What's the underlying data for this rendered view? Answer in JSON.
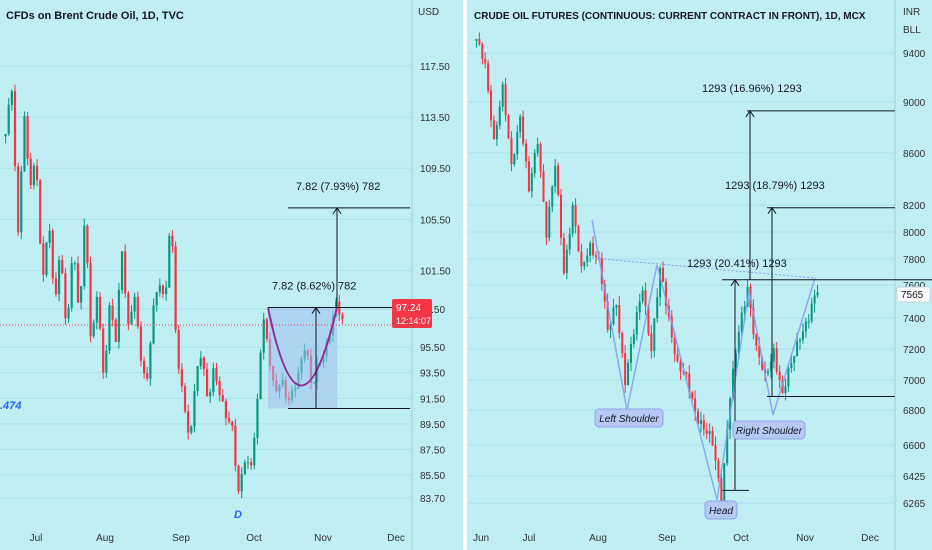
{
  "chart_data": [
    {
      "type": "candlestick",
      "title": "CFDs on Brent Crude Oil, 1D, TVC",
      "currency": "USD",
      "y_ticks": [
        117.5,
        113.5,
        109.5,
        105.5,
        101.5,
        98.5,
        95.5,
        93.5,
        91.5,
        89.5,
        87.5,
        85.5,
        83.7
      ],
      "y_tick_labels": [
        "117.50",
        "113.50",
        "109.50",
        "105.50",
        "101.50",
        "98.50",
        "95.50",
        "93.50",
        "91.50",
        "89.50",
        "87.50",
        "85.50",
        "83.70"
      ],
      "x_ticks": [
        "Jul",
        "Aug",
        "Sep",
        "Oct",
        "Nov",
        "Dec"
      ],
      "last_price": "97.24",
      "countdown": "12:14:07",
      "edge_label": ".474",
      "pattern_label": "D",
      "annotations": [
        "7.82 (7.93%) 782",
        "7.82 (8.62%) 782"
      ],
      "levels": {
        "neckline": 98.6,
        "target": 106.4,
        "cup_bottom": 90.7
      },
      "path": [
        112,
        116,
        104,
        114,
        108,
        110,
        100,
        106,
        99,
        103,
        96,
        104,
        98,
        106,
        95,
        100,
        93,
        99,
        96,
        103,
        97,
        100,
        95,
        92,
        98,
        101,
        99,
        106,
        94,
        92,
        88,
        93,
        95,
        91,
        94,
        92,
        90,
        89,
        84,
        87,
        86,
        90,
        98,
        95,
        92,
        93,
        91,
        92,
        94,
        96,
        92,
        94,
        95,
        97,
        99,
        97.24
      ]
    },
    {
      "type": "candlestick",
      "title": "CRUDE OIL FUTURES (CONTINUOUS: CURRENT CONTRACT IN FRONT), 1D, MCX",
      "currency": "INR",
      "unit": "BLL",
      "y_ticks": [
        9400,
        9000,
        8600,
        8200,
        8000,
        7800,
        7600,
        7400,
        7200,
        7000,
        6800,
        6600,
        6425,
        6265
      ],
      "y_tick_labels": [
        "9400",
        "9000",
        "8600",
        "8200",
        "8000",
        "7800",
        "7600",
        "7400",
        "7200",
        "7000",
        "6800",
        "6600",
        "6425",
        "6265"
      ],
      "x_ticks": [
        "Jun",
        "Jul",
        "Aug",
        "Sep",
        "Oct",
        "Nov",
        "Dec"
      ],
      "last_price": "7565",
      "annotations": [
        "1293 (16.96%) 1293",
        "1293 (18.79%) 1293",
        "1293 (20.41%) 1293"
      ],
      "pattern_labels": [
        "Left Shoulder",
        "Head",
        "Right Shoulder"
      ],
      "levels": {
        "neckline": 7640,
        "low_1": 6340,
        "low_2": 6890,
        "target_1": 7640,
        "target_2": 8180,
        "target_3": 8930
      },
      "path": [
        9500,
        9300,
        8700,
        9100,
        8500,
        8900,
        8300,
        8700,
        8000,
        8500,
        7700,
        8200,
        7700,
        7900,
        7800,
        7300,
        7500,
        7000,
        7300,
        7600,
        7200,
        7700,
        7400,
        7100,
        7000,
        6800,
        6700,
        6600,
        6300,
        6900,
        7300,
        7600,
        7200,
        7000,
        7200,
        6900,
        7100,
        7300,
        7400,
        7565
      ]
    }
  ]
}
